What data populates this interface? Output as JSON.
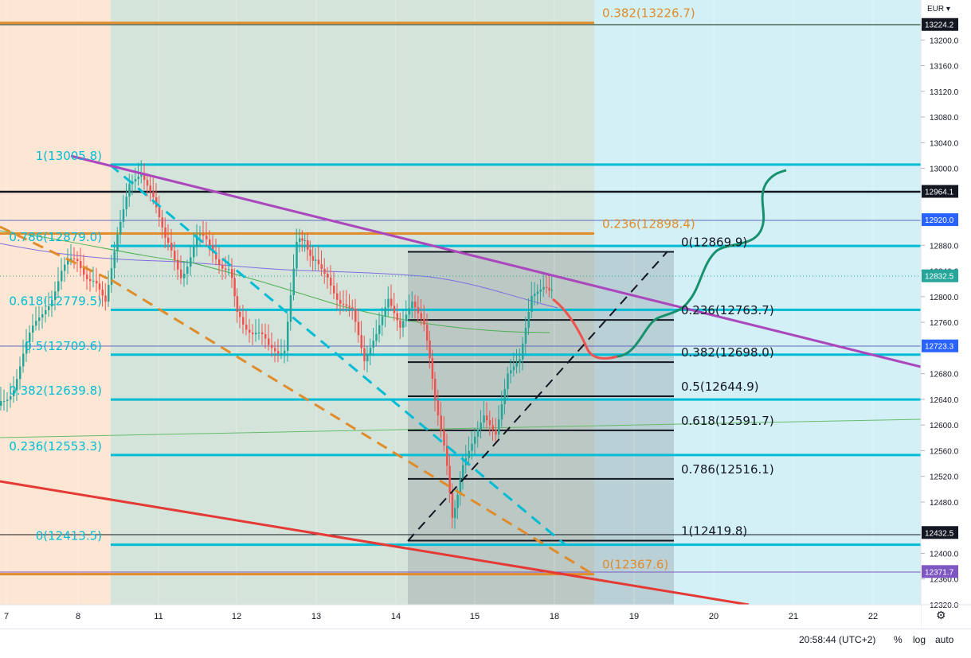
{
  "header": {
    "currency": "EUR"
  },
  "status": {
    "time": "20:58:44 (UTC+2)",
    "percent_label": "%",
    "log_label": "log",
    "auto_label": "auto"
  },
  "icons": {
    "settings": "gear-icon"
  },
  "chart_data": {
    "type": "candlestick",
    "symbol_currency": "EUR",
    "y_range": [
      12320,
      13240
    ],
    "y_ticks": [
      "13200.0",
      "13160.0",
      "13120.0",
      "13080.0",
      "13040.0",
      "13000.0",
      "12880.0",
      "12840.0",
      "12800.0",
      "12760.0",
      "12680.0",
      "12640.0",
      "12600.0",
      "12560.0",
      "12520.0",
      "12480.0",
      "12400.0",
      "12360.0",
      "12320.0"
    ],
    "x_ticks": [
      "7",
      "8",
      "11",
      "12",
      "13",
      "14",
      "15",
      "18",
      "19",
      "20",
      "21",
      "22"
    ],
    "price_labels": [
      {
        "text": "13224.2",
        "value": 13224.2,
        "bg": "#131722"
      },
      {
        "text": "12964.1",
        "value": 12964.1,
        "bg": "#131722"
      },
      {
        "text": "12920.0",
        "value": 12920.0,
        "bg": "#2962ff"
      },
      {
        "text": "12832.5",
        "value": 12832.5,
        "bg": "#26a69a"
      },
      {
        "text": "12723.3",
        "value": 12723.3,
        "bg": "#2962ff"
      },
      {
        "text": "12432.5",
        "value": 12432.5,
        "bg": "#131722"
      },
      {
        "text": "12371.7",
        "value": 12371.7,
        "bg": "#7e57c2"
      }
    ],
    "fib_left": [
      {
        "text": "1(13005.8)",
        "value": 13005.8
      },
      {
        "text": "0.786(12879.0)",
        "value": 12879.0
      },
      {
        "text": "0.618(12779.5)",
        "value": 12779.5
      },
      {
        "text": "0.5(12709.6)",
        "value": 12709.6
      },
      {
        "text": "0.382(12639.8)",
        "value": 12639.8
      },
      {
        "text": "0.236(12553.3)",
        "value": 12553.3
      },
      {
        "text": "0(12413.5)",
        "value": 12413.5
      }
    ],
    "fib_orange": [
      {
        "text": "0.382(13226.7)",
        "value": 13226.7
      },
      {
        "text": "0.236(12898.4)",
        "value": 12898.4
      },
      {
        "text": "0(12367.6)",
        "value": 12367.6
      }
    ],
    "fib_right": [
      {
        "text": "0(12869.9)",
        "value": 12869.9
      },
      {
        "text": "0.236(12763.7)",
        "value": 12763.7
      },
      {
        "text": "0.382(12698.0)",
        "value": 12698.0
      },
      {
        "text": "0.5(12644.9)",
        "value": 12644.9
      },
      {
        "text": "0.618(12591.7)",
        "value": 12591.7
      },
      {
        "text": "0.786(12516.1)",
        "value": 12516.1
      },
      {
        "text": "1(12419.8)",
        "value": 12419.8
      }
    ],
    "colors": {
      "up": "#26a69a",
      "down": "#ef5350",
      "fib_teal": "#00bcd4",
      "fib_orange": "#e08c2a",
      "trend_purple": "#ab47bc",
      "trend_red": "#e53935"
    }
  }
}
